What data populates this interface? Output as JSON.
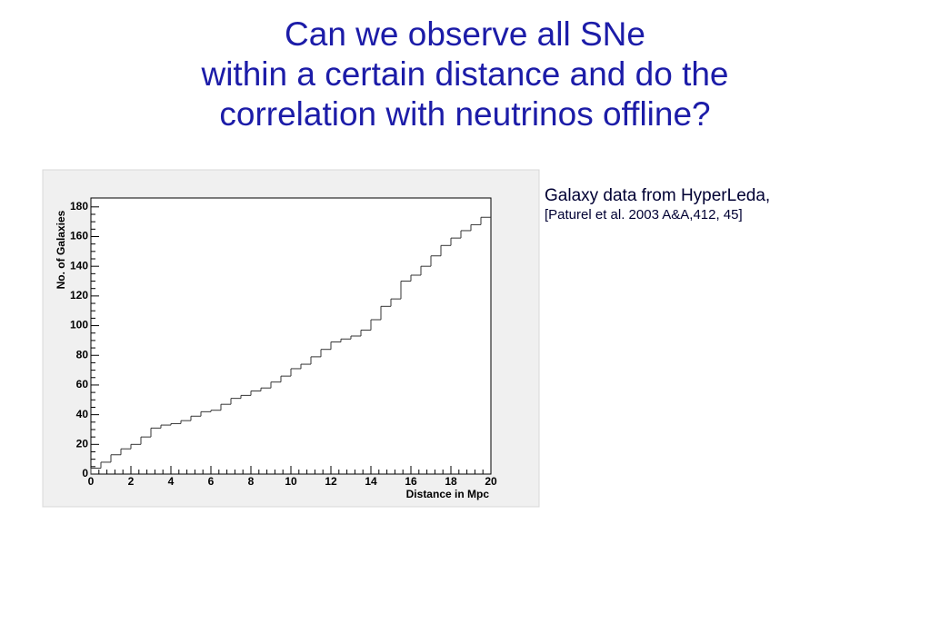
{
  "slide": {
    "title": [
      "Can we observe all SNe",
      "within a certain distance and do the",
      "correlation with neutrinos offline?"
    ],
    "caption": [
      "Galaxy data from HyperLeda,",
      "[Paturel et al. 2003 A&A,412, 45]"
    ]
  },
  "chart_data": {
    "type": "histogram",
    "x_label": "Distance in Mpc",
    "y_label": "No. of Galaxies",
    "bins": [
      0,
      0.5,
      1,
      1.5,
      2,
      2.5,
      3,
      3.5,
      4,
      4.5,
      5,
      5.5,
      6,
      6.5,
      7,
      7.5,
      8,
      8.5,
      9,
      9.5,
      10,
      10.5,
      11,
      11.5,
      12,
      12.5,
      13,
      13.5,
      14,
      14.5,
      15,
      15.5,
      16,
      16.5,
      17,
      17.5,
      18,
      18.5,
      19,
      19.5,
      20
    ],
    "values": [
      4,
      8,
      13,
      17,
      20,
      25,
      31,
      33,
      34,
      36,
      39,
      42,
      43,
      47,
      51,
      53,
      56,
      58,
      62,
      66,
      71,
      74,
      79,
      84,
      89,
      91,
      93,
      97,
      104,
      113,
      118,
      130,
      134,
      140,
      147,
      154,
      159,
      164,
      168,
      173
    ],
    "color": "#333333",
    "xlim": [
      0,
      20
    ],
    "ylim": [
      0,
      186
    ],
    "xticks": [
      0,
      2,
      4,
      6,
      8,
      10,
      12,
      14,
      16,
      18,
      20
    ],
    "yticks": [
      0,
      20,
      40,
      60,
      80,
      100,
      120,
      140,
      160,
      180
    ]
  }
}
